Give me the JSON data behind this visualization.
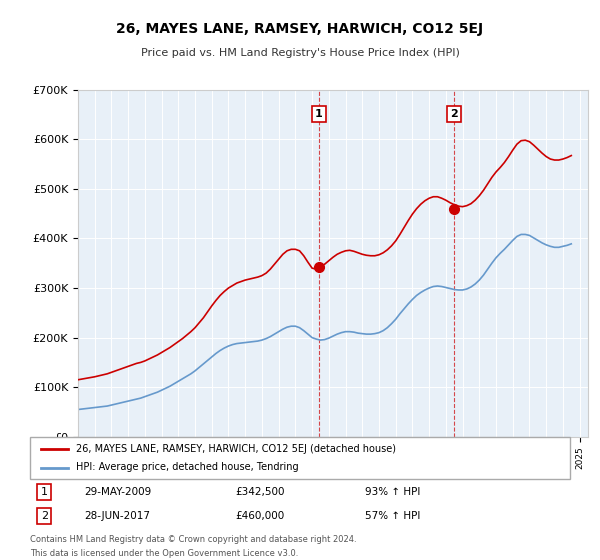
{
  "title": "26, MAYES LANE, RAMSEY, HARWICH, CO12 5EJ",
  "subtitle": "Price paid vs. HM Land Registry's House Price Index (HPI)",
  "red_label": "26, MAYES LANE, RAMSEY, HARWICH, CO12 5EJ (detached house)",
  "blue_label": "HPI: Average price, detached house, Tendring",
  "transaction1_label": "1",
  "transaction1_date": "29-MAY-2009",
  "transaction1_price": "£342,500",
  "transaction1_hpi": "93% ↑ HPI",
  "transaction2_label": "2",
  "transaction2_date": "28-JUN-2017",
  "transaction2_price": "£460,000",
  "transaction2_hpi": "57% ↑ HPI",
  "footer": "Contains HM Land Registry data © Crown copyright and database right 2024.\nThis data is licensed under the Open Government Licence v3.0.",
  "red_color": "#cc0000",
  "blue_color": "#6699cc",
  "marker1_x": 2009.41,
  "marker1_y": 342500,
  "marker2_x": 2017.49,
  "marker2_y": 460000,
  "vline1_x": 2009.41,
  "vline2_x": 2017.49,
  "ylim": [
    0,
    700000
  ],
  "xlim": [
    1995,
    2025.5
  ],
  "background_color": "#e8f0f8",
  "plot_bg_color": "#e8f0f8",
  "red_data_x": [
    1995.0,
    1995.25,
    1995.5,
    1995.75,
    1996.0,
    1996.25,
    1996.5,
    1996.75,
    1997.0,
    1997.25,
    1997.5,
    1997.75,
    1998.0,
    1998.25,
    1998.5,
    1998.75,
    1999.0,
    1999.25,
    1999.5,
    1999.75,
    2000.0,
    2000.25,
    2000.5,
    2000.75,
    2001.0,
    2001.25,
    2001.5,
    2001.75,
    2002.0,
    2002.25,
    2002.5,
    2002.75,
    2003.0,
    2003.25,
    2003.5,
    2003.75,
    2004.0,
    2004.25,
    2004.5,
    2004.75,
    2005.0,
    2005.25,
    2005.5,
    2005.75,
    2006.0,
    2006.25,
    2006.5,
    2006.75,
    2007.0,
    2007.25,
    2007.5,
    2007.75,
    2008.0,
    2008.25,
    2008.5,
    2008.75,
    2009.0,
    2009.25,
    2009.5,
    2009.75,
    2010.0,
    2010.25,
    2010.5,
    2010.75,
    2011.0,
    2011.25,
    2011.5,
    2011.75,
    2012.0,
    2012.25,
    2012.5,
    2012.75,
    2013.0,
    2013.25,
    2013.5,
    2013.75,
    2014.0,
    2014.25,
    2014.5,
    2014.75,
    2015.0,
    2015.25,
    2015.5,
    2015.75,
    2016.0,
    2016.25,
    2016.5,
    2016.75,
    2017.0,
    2017.25,
    2017.5,
    2017.75,
    2018.0,
    2018.25,
    2018.5,
    2018.75,
    2019.0,
    2019.25,
    2019.5,
    2019.75,
    2020.0,
    2020.25,
    2020.5,
    2020.75,
    2021.0,
    2021.25,
    2021.5,
    2021.75,
    2022.0,
    2022.25,
    2022.5,
    2022.75,
    2023.0,
    2023.25,
    2023.5,
    2023.75,
    2024.0,
    2024.25,
    2024.5
  ],
  "red_data_y": [
    115000,
    116500,
    118000,
    119500,
    121000,
    123000,
    125000,
    127000,
    130000,
    133000,
    136000,
    139000,
    142000,
    145000,
    148000,
    150000,
    153000,
    157000,
    161000,
    165000,
    170000,
    175000,
    180000,
    186000,
    192000,
    198000,
    205000,
    212000,
    220000,
    230000,
    240000,
    252000,
    264000,
    275000,
    285000,
    293000,
    300000,
    305000,
    310000,
    313000,
    316000,
    318000,
    320000,
    322000,
    325000,
    330000,
    338000,
    348000,
    358000,
    368000,
    375000,
    378000,
    378000,
    375000,
    365000,
    352000,
    340000,
    338000,
    342500,
    348000,
    355000,
    362000,
    368000,
    372000,
    375000,
    376000,
    374000,
    371000,
    368000,
    366000,
    365000,
    365000,
    367000,
    371000,
    377000,
    385000,
    395000,
    408000,
    422000,
    436000,
    449000,
    460000,
    469000,
    476000,
    481000,
    484000,
    484000,
    481000,
    477000,
    472000,
    468000,
    465000,
    464000,
    466000,
    470000,
    477000,
    486000,
    497000,
    510000,
    523000,
    534000,
    543000,
    553000,
    565000,
    578000,
    590000,
    597000,
    598000,
    595000,
    588000,
    580000,
    572000,
    565000,
    560000,
    558000,
    558000,
    560000,
    563000,
    567000
  ],
  "blue_data_x": [
    1995.0,
    1995.25,
    1995.5,
    1995.75,
    1996.0,
    1996.25,
    1996.5,
    1996.75,
    1997.0,
    1997.25,
    1997.5,
    1997.75,
    1998.0,
    1998.25,
    1998.5,
    1998.75,
    1999.0,
    1999.25,
    1999.5,
    1999.75,
    2000.0,
    2000.25,
    2000.5,
    2000.75,
    2001.0,
    2001.25,
    2001.5,
    2001.75,
    2002.0,
    2002.25,
    2002.5,
    2002.75,
    2003.0,
    2003.25,
    2003.5,
    2003.75,
    2004.0,
    2004.25,
    2004.5,
    2004.75,
    2005.0,
    2005.25,
    2005.5,
    2005.75,
    2006.0,
    2006.25,
    2006.5,
    2006.75,
    2007.0,
    2007.25,
    2007.5,
    2007.75,
    2008.0,
    2008.25,
    2008.5,
    2008.75,
    2009.0,
    2009.25,
    2009.5,
    2009.75,
    2010.0,
    2010.25,
    2010.5,
    2010.75,
    2011.0,
    2011.25,
    2011.5,
    2011.75,
    2012.0,
    2012.25,
    2012.5,
    2012.75,
    2013.0,
    2013.25,
    2013.5,
    2013.75,
    2014.0,
    2014.25,
    2014.5,
    2014.75,
    2015.0,
    2015.25,
    2015.5,
    2015.75,
    2016.0,
    2016.25,
    2016.5,
    2016.75,
    2017.0,
    2017.25,
    2017.5,
    2017.75,
    2018.0,
    2018.25,
    2018.5,
    2018.75,
    2019.0,
    2019.25,
    2019.5,
    2019.75,
    2020.0,
    2020.25,
    2020.5,
    2020.75,
    2021.0,
    2021.25,
    2021.5,
    2021.75,
    2022.0,
    2022.25,
    2022.5,
    2022.75,
    2023.0,
    2023.25,
    2023.5,
    2023.75,
    2024.0,
    2024.25,
    2024.5
  ],
  "blue_data_y": [
    55000,
    56000,
    57000,
    58000,
    59000,
    60000,
    61000,
    62000,
    64000,
    66000,
    68000,
    70000,
    72000,
    74000,
    76000,
    78000,
    81000,
    84000,
    87000,
    90000,
    94000,
    98000,
    102000,
    107000,
    112000,
    117000,
    122000,
    127000,
    133000,
    140000,
    147000,
    154000,
    161000,
    168000,
    174000,
    179000,
    183000,
    186000,
    188000,
    189000,
    190000,
    191000,
    192000,
    193000,
    195000,
    198000,
    202000,
    207000,
    212000,
    217000,
    221000,
    223000,
    223000,
    220000,
    214000,
    207000,
    200000,
    197000,
    195000,
    196000,
    199000,
    203000,
    207000,
    210000,
    212000,
    212000,
    211000,
    209000,
    208000,
    207000,
    207000,
    208000,
    210000,
    214000,
    220000,
    228000,
    237000,
    248000,
    258000,
    268000,
    277000,
    285000,
    291000,
    296000,
    300000,
    303000,
    304000,
    303000,
    301000,
    299000,
    297000,
    296000,
    296000,
    298000,
    302000,
    308000,
    316000,
    326000,
    338000,
    350000,
    361000,
    370000,
    378000,
    387000,
    396000,
    404000,
    408000,
    408000,
    406000,
    401000,
    396000,
    391000,
    387000,
    384000,
    382000,
    382000,
    384000,
    386000,
    389000
  ]
}
